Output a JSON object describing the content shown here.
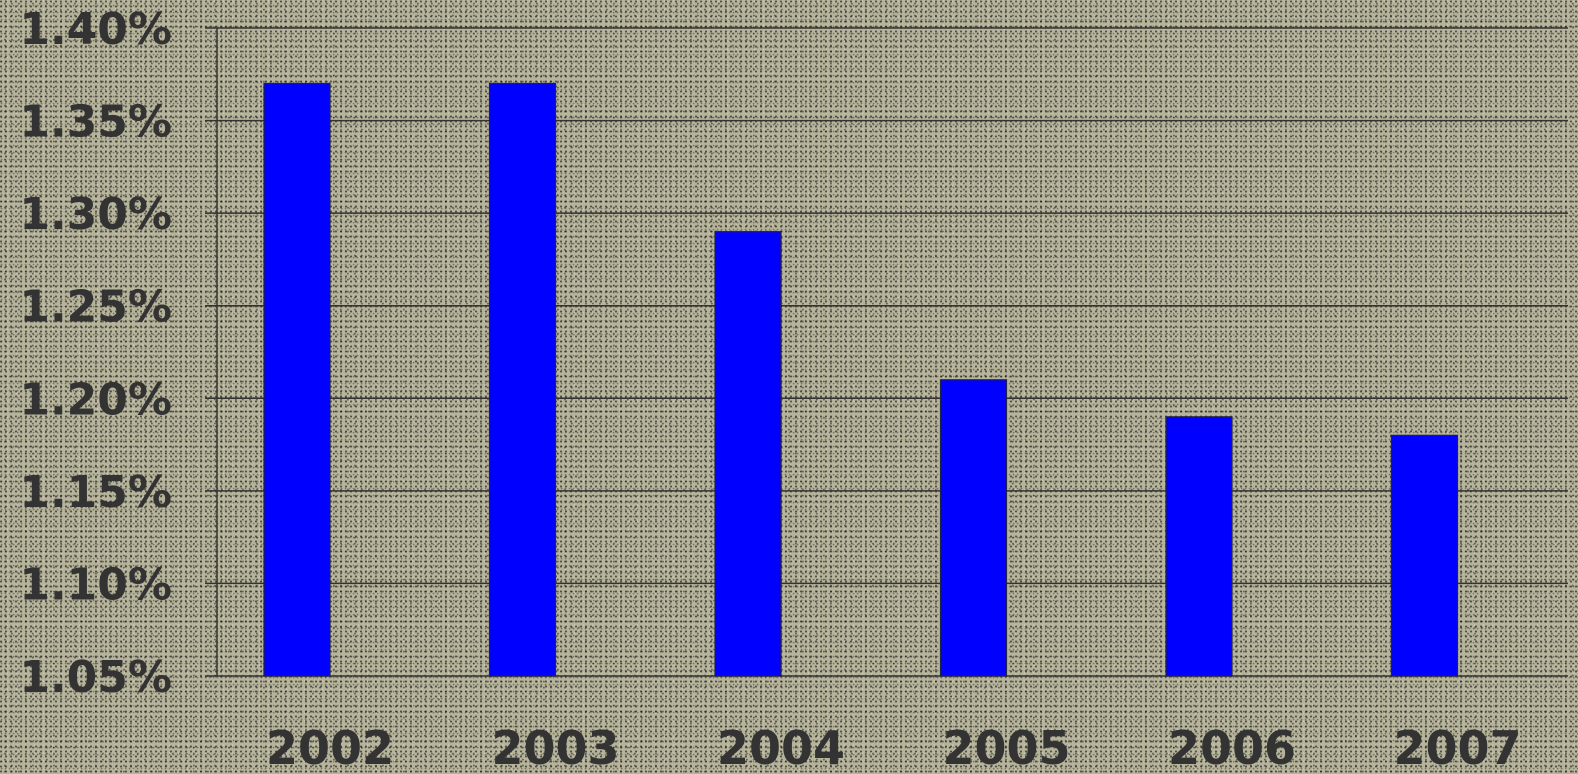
{
  "chart_data": {
    "type": "bar",
    "title": "",
    "xlabel": "",
    "ylabel": "",
    "categories": [
      "2002",
      "2003",
      "2004",
      "2005",
      "2006",
      "2007"
    ],
    "values": [
      1.37,
      1.37,
      1.29,
      1.21,
      1.19,
      1.18
    ],
    "unit": "%",
    "ylim": [
      1.05,
      1.4
    ],
    "y_ticks": [
      "1.05%",
      "1.10%",
      "1.15%",
      "1.20%",
      "1.25%",
      "1.30%",
      "1.35%",
      "1.40%"
    ],
    "y_tick_values": [
      1.05,
      1.1,
      1.15,
      1.2,
      1.25,
      1.3,
      1.35,
      1.4
    ],
    "grid": true,
    "legend": "none",
    "colors": {
      "bar": "#0000ff",
      "text": "#333333",
      "grid": "#333333",
      "background": "#b7b49c"
    }
  }
}
